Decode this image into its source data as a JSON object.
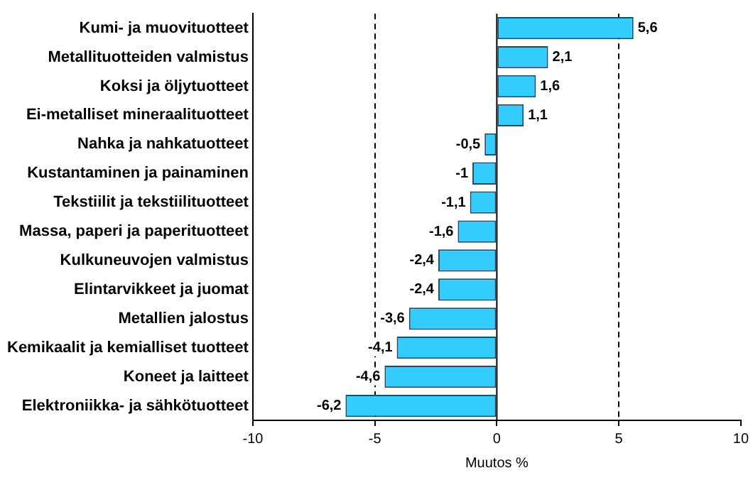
{
  "chart_data": {
    "type": "bar",
    "orientation": "horizontal",
    "xlabel": "Muutos %",
    "categories": [
      "Kumi- ja muovituotteet",
      "Metallituotteiden valmistus",
      "Koksi ja öljytuotteet",
      "Ei-metalliset mineraalituotteet",
      "Nahka ja nahkatuotteet",
      "Kustantaminen ja painaminen",
      "Tekstiilit ja tekstiilituotteet",
      "Massa, paperi ja paperituotteet",
      "Kulkuneuvojen valmistus",
      "Elintarvikkeet ja juomat",
      "Metallien jalostus",
      "Kemikaalit ja kemialliset tuotteet",
      "Koneet ja laitteet",
      "Elektroniikka- ja sähkötuotteet"
    ],
    "values": [
      5.6,
      2.1,
      1.6,
      1.1,
      -0.5,
      -1,
      -1.1,
      -1.6,
      -2.4,
      -2.4,
      -3.6,
      -4.1,
      -4.6,
      -6.2
    ],
    "value_labels": [
      "5,6",
      "2,1",
      "1,6",
      "1,1",
      "-0,5",
      "-1",
      "-1,1",
      "-1,6",
      "-2,4",
      "-2,4",
      "-3,6",
      "-4,1",
      "-4,6",
      "-6,2"
    ],
    "color": "#33ccff",
    "xlim": [
      -10,
      10
    ],
    "xticks": [
      -10,
      -5,
      0,
      5,
      10
    ],
    "grid": "x",
    "line_style": "dashed",
    "ref_lines": [
      {
        "axis": "x",
        "value": 0
      }
    ],
    "legend": false
  }
}
